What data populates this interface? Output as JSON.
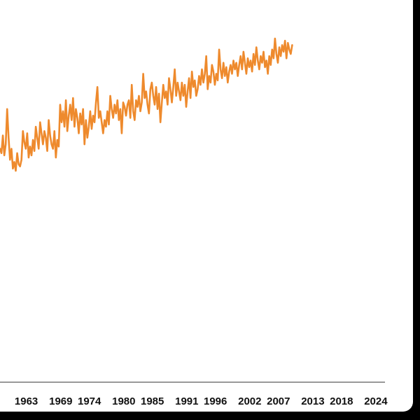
{
  "colors": {
    "series": "#ee8a2d",
    "axis": "#333333",
    "text": "#111111"
  },
  "chart_data": {
    "type": "line",
    "title": "",
    "xlabel": "",
    "ylabel": "",
    "grid": false,
    "xlim": [
      1958.4,
      2025.6
    ],
    "ylim": [
      0,
      1
    ],
    "x_ticks": [
      "1963",
      "1969",
      "1974",
      "1980",
      "1985",
      "1991",
      "1996",
      "2002",
      "2007",
      "2013",
      "2018",
      "2024"
    ],
    "x_tick_values": [
      1963,
      1969,
      1974,
      1980,
      1985,
      1991,
      1996,
      2002,
      2007,
      2013,
      2018,
      2024
    ],
    "series": [
      {
        "x_start": 1958.4,
        "x_step": 0.25,
        "values": [
          0.5,
          0.48,
          0.56,
          0.47,
          0.52,
          0.68,
          0.55,
          0.45,
          0.5,
          0.41,
          0.44,
          0.4,
          0.48,
          0.43,
          0.42,
          0.45,
          0.58,
          0.53,
          0.5,
          0.57,
          0.46,
          0.51,
          0.47,
          0.54,
          0.49,
          0.6,
          0.55,
          0.5,
          0.62,
          0.57,
          0.52,
          0.58,
          0.55,
          0.49,
          0.63,
          0.56,
          0.52,
          0.5,
          0.58,
          0.46,
          0.54,
          0.51,
          0.7,
          0.62,
          0.67,
          0.6,
          0.72,
          0.58,
          0.65,
          0.7,
          0.63,
          0.73,
          0.6,
          0.68,
          0.64,
          0.57,
          0.66,
          0.61,
          0.68,
          0.52,
          0.63,
          0.55,
          0.6,
          0.67,
          0.59,
          0.65,
          0.62,
          0.71,
          0.78,
          0.64,
          0.67,
          0.62,
          0.57,
          0.63,
          0.6,
          0.67,
          0.61,
          0.74,
          0.68,
          0.64,
          0.7,
          0.66,
          0.72,
          0.63,
          0.68,
          0.57,
          0.71,
          0.69,
          0.65,
          0.7,
          0.72,
          0.64,
          0.79,
          0.67,
          0.63,
          0.72,
          0.69,
          0.74,
          0.67,
          0.71,
          0.84,
          0.73,
          0.76,
          0.7,
          0.66,
          0.77,
          0.8,
          0.74,
          0.7,
          0.78,
          0.68,
          0.75,
          0.62,
          0.71,
          0.79,
          0.73,
          0.76,
          0.7,
          0.82,
          0.77,
          0.71,
          0.78,
          0.86,
          0.74,
          0.8,
          0.76,
          0.72,
          0.8,
          0.74,
          0.79,
          0.69,
          0.76,
          0.82,
          0.73,
          0.85,
          0.78,
          0.81,
          0.74,
          0.77,
          0.83,
          0.79,
          0.86,
          0.8,
          0.84,
          0.92,
          0.77,
          0.83,
          0.8,
          0.88,
          0.85,
          0.79,
          0.84,
          0.81,
          0.95,
          0.86,
          0.82,
          0.89,
          0.83,
          0.87,
          0.8,
          0.85,
          0.88,
          0.84,
          0.9,
          0.86,
          0.89,
          0.83,
          0.88,
          0.92,
          0.86,
          0.94,
          0.89,
          0.84,
          0.91,
          0.87,
          0.9,
          0.85,
          0.93,
          0.88,
          0.96,
          0.9,
          0.86,
          0.92,
          0.89,
          0.94,
          0.87,
          0.9,
          0.84,
          0.92,
          0.88,
          0.95,
          0.91,
          1.0,
          0.93,
          0.89,
          0.96,
          0.92,
          0.97,
          0.94,
          0.99,
          0.91,
          0.98,
          0.95,
          0.93,
          0.97
        ]
      }
    ]
  }
}
